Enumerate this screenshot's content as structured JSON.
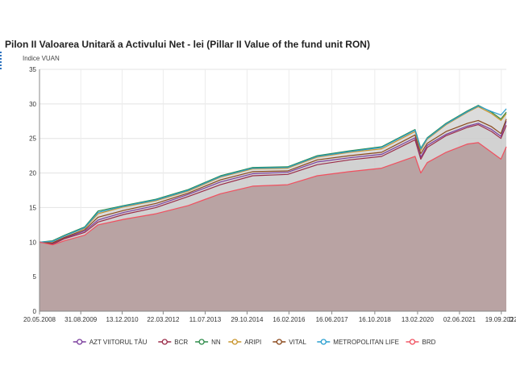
{
  "chart_data": {
    "type": "area",
    "title": "Pilon II Valoarea Unitară a Activului Net - lei (Pillar II Value of the fund unit RON)",
    "ylabel": "Indice VUAN",
    "xlabel_partial": "D",
    "ylim": [
      0,
      35
    ],
    "yticks": [
      0,
      5,
      10,
      15,
      20,
      25,
      30,
      35
    ],
    "xlim": [
      "2008-05-20",
      "2022-11-15"
    ],
    "xticks": [
      "20.05.2008",
      "31.08.2009",
      "13.12.2010",
      "22.03.2012",
      "11.07.2013",
      "29.10.2014",
      "16.02.2016",
      "16.06.2017",
      "16.10.2018",
      "13.02.2020",
      "02.06.2021",
      "19.09.2022"
    ],
    "grid": true,
    "legend_position": "bottom",
    "series": [
      {
        "name": "AZT VIITORUL TĂU",
        "color": "#7b3f9e",
        "x": [
          "2008-05-20",
          "2008-10-15",
          "2009-03-01",
          "2009-10-15",
          "2010-03-15",
          "2011-01-01",
          "2012-01-01",
          "2013-01-01",
          "2014-01-01",
          "2015-01-01",
          "2016-02-01",
          "2017-01-01",
          "2018-01-01",
          "2019-01-01",
          "2020-01-15",
          "2020-03-20",
          "2020-06-01",
          "2021-01-01",
          "2021-09-01",
          "2022-01-01",
          "2022-06-01",
          "2022-09-15",
          "2022-11-15"
        ],
        "values": [
          10.0,
          9.8,
          10.6,
          11.6,
          13.2,
          14.3,
          15.3,
          16.9,
          18.7,
          19.9,
          20.1,
          21.6,
          22.2,
          22.7,
          25.1,
          22.3,
          24.0,
          25.6,
          26.8,
          27.2,
          26.3,
          25.3,
          27.5
        ]
      },
      {
        "name": "BCR",
        "color": "#9b2d4a",
        "x": [
          "2008-05-20",
          "2008-10-15",
          "2009-03-01",
          "2009-10-15",
          "2010-03-15",
          "2011-01-01",
          "2012-01-01",
          "2013-01-01",
          "2014-01-01",
          "2015-01-01",
          "2016-02-01",
          "2017-01-01",
          "2018-01-01",
          "2019-01-01",
          "2020-01-15",
          "2020-03-20",
          "2020-06-01",
          "2021-01-01",
          "2021-09-01",
          "2022-01-01",
          "2022-06-01",
          "2022-09-15",
          "2022-11-15"
        ],
        "values": [
          10.0,
          9.7,
          10.5,
          11.4,
          12.9,
          14.0,
          15.0,
          16.6,
          18.3,
          19.6,
          19.8,
          21.2,
          21.9,
          22.4,
          24.8,
          22.0,
          23.7,
          25.4,
          26.6,
          27.0,
          26.0,
          25.0,
          26.9
        ]
      },
      {
        "name": "NN",
        "color": "#2e8b4a",
        "x": [
          "2008-05-20",
          "2008-10-15",
          "2009-03-01",
          "2009-10-15",
          "2010-03-15",
          "2011-01-01",
          "2012-01-01",
          "2013-01-01",
          "2014-01-01",
          "2015-01-01",
          "2016-02-01",
          "2017-01-01",
          "2018-01-01",
          "2019-01-01",
          "2020-01-15",
          "2020-03-20",
          "2020-06-01",
          "2021-01-01",
          "2021-09-01",
          "2022-01-01",
          "2022-06-01",
          "2022-09-15",
          "2022-11-15"
        ],
        "values": [
          10.0,
          10.2,
          11.0,
          12.2,
          14.5,
          15.3,
          16.2,
          17.6,
          19.6,
          20.8,
          20.9,
          22.5,
          23.2,
          23.8,
          26.3,
          23.6,
          25.1,
          27.2,
          29.0,
          29.8,
          28.8,
          27.8,
          28.8
        ]
      },
      {
        "name": "ARIPI",
        "color": "#c9962f",
        "x": [
          "2008-05-20",
          "2008-10-15",
          "2009-03-01",
          "2009-10-15",
          "2010-03-15",
          "2011-01-01",
          "2012-01-01",
          "2013-01-01",
          "2014-01-01",
          "2015-01-01",
          "2016-02-01",
          "2017-01-01",
          "2018-01-01",
          "2019-01-01",
          "2020-01-15",
          "2020-03-20",
          "2020-06-01",
          "2021-01-01",
          "2021-09-01",
          "2022-01-01",
          "2022-06-01",
          "2022-09-15",
          "2022-11-15"
        ],
        "values": [
          10.0,
          10.1,
          10.9,
          12.0,
          14.1,
          15.1,
          16.0,
          17.4,
          19.4,
          20.6,
          20.7,
          22.3,
          23.0,
          23.5,
          26.0,
          23.3,
          24.9,
          27.0,
          28.8,
          29.6,
          28.6,
          27.6,
          28.6
        ]
      },
      {
        "name": "VITAL",
        "color": "#8b4a1e",
        "x": [
          "2008-05-20",
          "2008-10-15",
          "2009-03-01",
          "2009-10-15",
          "2010-03-15",
          "2011-01-01",
          "2012-01-01",
          "2013-01-01",
          "2014-01-01",
          "2015-01-01",
          "2016-02-01",
          "2017-01-01",
          "2018-01-01",
          "2019-01-01",
          "2020-01-15",
          "2020-03-20",
          "2020-06-01",
          "2021-01-01",
          "2021-09-01",
          "2022-01-01",
          "2022-06-01",
          "2022-09-15",
          "2022-11-15"
        ],
        "values": [
          10.0,
          9.9,
          10.7,
          11.8,
          13.6,
          14.6,
          15.6,
          17.1,
          19.0,
          20.2,
          20.3,
          21.9,
          22.5,
          23.0,
          25.5,
          22.8,
          24.3,
          26.0,
          27.2,
          27.6,
          26.7,
          25.7,
          27.8
        ]
      },
      {
        "name": "METROPOLITAN LIFE",
        "color": "#2a9fd0",
        "x": [
          "2008-05-20",
          "2008-10-15",
          "2009-03-01",
          "2009-10-15",
          "2010-03-15",
          "2011-01-01",
          "2012-01-01",
          "2013-01-01",
          "2014-01-01",
          "2015-01-01",
          "2016-02-01",
          "2017-01-01",
          "2018-01-01",
          "2019-01-01",
          "2020-01-15",
          "2020-03-20",
          "2020-06-01",
          "2021-01-01",
          "2021-09-01",
          "2022-01-01",
          "2022-06-01",
          "2022-09-15",
          "2022-11-15"
        ],
        "values": [
          10.0,
          10.1,
          10.9,
          12.1,
          14.3,
          15.2,
          16.1,
          17.5,
          19.5,
          20.7,
          20.8,
          22.4,
          23.1,
          23.7,
          26.2,
          23.5,
          25.0,
          27.1,
          28.9,
          29.7,
          28.9,
          28.4,
          29.3
        ]
      },
      {
        "name": "BRD",
        "color": "#f0505f",
        "x": [
          "2008-05-20",
          "2008-10-15",
          "2009-03-01",
          "2009-10-15",
          "2010-03-15",
          "2011-01-01",
          "2012-01-01",
          "2013-01-01",
          "2014-01-01",
          "2015-01-01",
          "2016-02-01",
          "2017-01-01",
          "2018-01-01",
          "2019-01-01",
          "2020-01-15",
          "2020-03-20",
          "2020-06-01",
          "2021-01-01",
          "2021-09-01",
          "2022-01-01",
          "2022-06-01",
          "2022-09-15",
          "2022-11-15"
        ],
        "values": [
          10.0,
          9.6,
          10.2,
          11.0,
          12.5,
          13.3,
          14.1,
          15.3,
          17.0,
          18.1,
          18.3,
          19.6,
          20.2,
          20.7,
          22.4,
          20.0,
          21.5,
          23.0,
          24.2,
          24.4,
          23.0,
          22.0,
          23.8
        ]
      }
    ]
  }
}
